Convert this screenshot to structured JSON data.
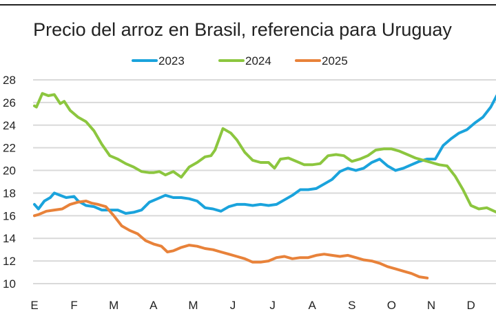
{
  "chart_data": {
    "type": "line",
    "title": "Precio del arroz en Brasil, referencia para Uruguay",
    "xlabel": "",
    "ylabel": "",
    "ylim": [
      10,
      28
    ],
    "yticks": [
      10,
      12,
      14,
      16,
      18,
      20,
      22,
      24,
      26,
      28
    ],
    "xticks": [
      "E",
      "F",
      "M",
      "A",
      "M",
      "J",
      "J",
      "A",
      "S",
      "O",
      "N",
      "D"
    ],
    "grid": true,
    "legend": "top-center",
    "x_unit": "month index (0 = E start, 11.6 = late D)",
    "series": [
      {
        "name": "2023",
        "color": "#1aa3dc",
        "x": [
          0,
          0.1,
          0.25,
          0.4,
          0.5,
          0.65,
          0.8,
          1.0,
          1.1,
          1.3,
          1.5,
          1.7,
          1.9,
          2.1,
          2.3,
          2.5,
          2.7,
          2.9,
          3.1,
          3.3,
          3.5,
          3.7,
          3.9,
          4.1,
          4.3,
          4.5,
          4.7,
          4.9,
          5.1,
          5.3,
          5.5,
          5.7,
          5.9,
          6.1,
          6.3,
          6.5,
          6.7,
          6.9,
          7.1,
          7.3,
          7.5,
          7.7,
          7.9,
          8.1,
          8.3,
          8.5,
          8.7,
          8.9,
          9.1,
          9.3,
          9.5,
          9.7,
          9.9,
          10.1,
          10.3,
          10.5,
          10.7,
          10.9,
          11.1,
          11.3,
          11.5,
          11.65
        ],
        "values": [
          17.0,
          16.6,
          17.3,
          17.6,
          18.0,
          17.8,
          17.6,
          17.7,
          17.3,
          16.9,
          16.8,
          16.5,
          16.5,
          16.5,
          16.2,
          16.3,
          16.5,
          17.2,
          17.5,
          17.8,
          17.6,
          17.6,
          17.5,
          17.3,
          16.7,
          16.6,
          16.4,
          16.8,
          17.0,
          17.0,
          16.9,
          17.0,
          16.9,
          17.0,
          17.4,
          17.8,
          18.3,
          18.3,
          18.4,
          18.8,
          19.2,
          19.9,
          20.2,
          20.0,
          20.2,
          20.7,
          21.0,
          20.4,
          20.0,
          20.2,
          20.5,
          20.8,
          21.0,
          21.0,
          22.2,
          22.8,
          23.3,
          23.6,
          24.2,
          24.7,
          25.6,
          26.6
        ]
      },
      {
        "name": "2024",
        "color": "#8cc63f",
        "x": [
          0,
          0.05,
          0.2,
          0.35,
          0.5,
          0.65,
          0.75,
          0.9,
          1.1,
          1.3,
          1.5,
          1.7,
          1.9,
          2.1,
          2.3,
          2.5,
          2.7,
          2.9,
          3.0,
          3.15,
          3.3,
          3.5,
          3.7,
          3.9,
          4.1,
          4.3,
          4.45,
          4.55,
          4.75,
          4.95,
          5.1,
          5.3,
          5.5,
          5.7,
          5.9,
          6.05,
          6.2,
          6.4,
          6.6,
          6.8,
          7.0,
          7.2,
          7.4,
          7.6,
          7.8,
          8.0,
          8.2,
          8.4,
          8.6,
          8.8,
          9.0,
          9.2,
          9.4,
          9.6,
          9.8,
          10.0,
          10.2,
          10.4,
          10.6,
          10.8,
          11.0,
          11.2,
          11.4,
          11.65
        ],
        "values": [
          25.7,
          25.6,
          26.8,
          26.6,
          26.7,
          25.9,
          26.1,
          25.3,
          24.7,
          24.3,
          23.5,
          22.3,
          21.3,
          21.0,
          20.6,
          20.3,
          19.9,
          19.8,
          19.8,
          19.9,
          19.6,
          19.9,
          19.4,
          20.3,
          20.7,
          21.2,
          21.3,
          21.8,
          23.7,
          23.3,
          22.7,
          21.6,
          20.9,
          20.7,
          20.7,
          20.2,
          21.0,
          21.1,
          20.8,
          20.5,
          20.5,
          20.6,
          21.3,
          21.4,
          21.3,
          20.8,
          21.0,
          21.3,
          21.8,
          21.9,
          21.9,
          21.7,
          21.4,
          21.1,
          20.9,
          20.7,
          20.5,
          20.4,
          19.5,
          18.3,
          16.9,
          16.6,
          16.7,
          16.3
        ]
      },
      {
        "name": "2025",
        "color": "#e8823a",
        "x": [
          0,
          0.1,
          0.3,
          0.5,
          0.7,
          0.9,
          1.1,
          1.3,
          1.45,
          1.6,
          1.8,
          2.0,
          2.2,
          2.4,
          2.6,
          2.8,
          3.0,
          3.2,
          3.35,
          3.5,
          3.7,
          3.9,
          4.1,
          4.3,
          4.5,
          4.7,
          4.9,
          5.1,
          5.3,
          5.5,
          5.7,
          5.9,
          6.1,
          6.3,
          6.5,
          6.7,
          6.9,
          7.1,
          7.3,
          7.5,
          7.7,
          7.9,
          8.1,
          8.3,
          8.5,
          8.7,
          8.9,
          9.1,
          9.3,
          9.5,
          9.7,
          9.9
        ],
        "values": [
          16.0,
          16.1,
          16.4,
          16.5,
          16.6,
          17.0,
          17.2,
          17.3,
          17.1,
          17.0,
          16.8,
          16.0,
          15.1,
          14.7,
          14.4,
          13.8,
          13.5,
          13.3,
          12.8,
          12.9,
          13.2,
          13.4,
          13.3,
          13.1,
          13.0,
          12.8,
          12.6,
          12.4,
          12.2,
          11.9,
          11.9,
          12.0,
          12.3,
          12.4,
          12.2,
          12.3,
          12.3,
          12.5,
          12.6,
          12.5,
          12.4,
          12.5,
          12.3,
          12.1,
          12.0,
          11.8,
          11.5,
          11.3,
          11.1,
          10.9,
          10.6,
          10.5
        ]
      }
    ]
  }
}
